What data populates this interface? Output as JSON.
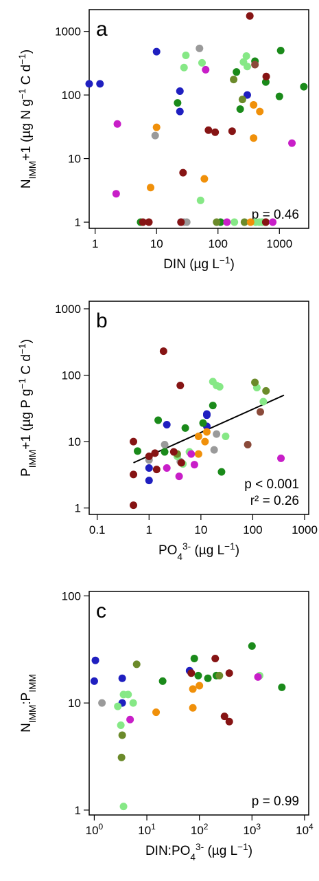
{
  "chart_data": [
    {
      "panel": "a",
      "type": "scatter",
      "xlabel": {
        "base": "DIN (µg L",
        "sup": "−1",
        "end": ")"
      },
      "ylabel": {
        "parts": [
          [
            "N",
            ""
          ],
          [
            "IMM",
            "sub"
          ],
          [
            "+1 (µg N g",
            ""
          ],
          [
            "−1",
            "sup"
          ],
          [
            " C d",
            ""
          ],
          [
            "−1",
            "sup"
          ],
          [
            ")",
            ""
          ]
        ]
      },
      "x_scale": "log",
      "y_scale": "log",
      "xlim": [
        0.8,
        3000
      ],
      "ylim": [
        0.8,
        2200
      ],
      "x_ticks": [
        {
          "v": 1,
          "label": "1"
        },
        {
          "v": 10,
          "label": "10"
        },
        {
          "v": 100,
          "label": "100"
        },
        {
          "v": 1000,
          "label": "1000"
        }
      ],
      "y_ticks": [
        {
          "v": 1,
          "label": "1"
        },
        {
          "v": 10,
          "label": "10"
        },
        {
          "v": 100,
          "label": "100"
        },
        {
          "v": 1000,
          "label": "1000"
        }
      ],
      "stats": [
        "p = 0.46"
      ],
      "points": [
        [
          0.8,
          150,
          "blue"
        ],
        [
          1.2,
          150,
          "blue"
        ],
        [
          10,
          480,
          "blue"
        ],
        [
          24,
          115,
          "blue"
        ],
        [
          24,
          55,
          "blue"
        ],
        [
          300,
          100,
          "blue"
        ],
        [
          25,
          1,
          "blue"
        ],
        [
          50,
          540,
          "gray"
        ],
        [
          9.5,
          23,
          "gray"
        ],
        [
          28,
          1,
          "gray"
        ],
        [
          31,
          1,
          "gray"
        ],
        [
          30,
          420,
          "lightgreen"
        ],
        [
          28,
          270,
          "lightgreen"
        ],
        [
          55,
          320,
          "lightgreen"
        ],
        [
          290,
          410,
          "lightgreen"
        ],
        [
          260,
          330,
          "lightgreen"
        ],
        [
          300,
          280,
          "lightgreen"
        ],
        [
          52,
          2.2,
          "lightgreen"
        ],
        [
          185,
          1,
          "lightgreen"
        ],
        [
          410,
          1,
          "lightgreen"
        ],
        [
          470,
          1,
          "lightgreen"
        ],
        [
          520,
          1,
          "lightgreen"
        ],
        [
          22,
          75,
          "green"
        ],
        [
          200,
          230,
          "green"
        ],
        [
          400,
          340,
          "green"
        ],
        [
          1050,
          500,
          "green"
        ],
        [
          600,
          160,
          "green"
        ],
        [
          1000,
          95,
          "green"
        ],
        [
          2500,
          135,
          "green"
        ],
        [
          230,
          60,
          "green"
        ],
        [
          5.5,
          1,
          "green"
        ],
        [
          110,
          1,
          "green"
        ],
        [
          180,
          175,
          "olive"
        ],
        [
          250,
          85,
          "olive"
        ],
        [
          95,
          1,
          "olive"
        ],
        [
          270,
          1,
          "olive"
        ],
        [
          600,
          1,
          "olive"
        ],
        [
          330,
          1750,
          "maroon"
        ],
        [
          610,
          195,
          "maroon"
        ],
        [
          70,
          28,
          "maroon"
        ],
        [
          90,
          26,
          "maroon"
        ],
        [
          170,
          27,
          "maroon"
        ],
        [
          27,
          6,
          "maroon"
        ],
        [
          6,
          1,
          "maroon"
        ],
        [
          7.5,
          1,
          "maroon"
        ],
        [
          25,
          1,
          "maroon"
        ],
        [
          600,
          1,
          "maroon"
        ],
        [
          400,
          300,
          "brown"
        ],
        [
          380,
          70,
          "orange"
        ],
        [
          480,
          55,
          "orange"
        ],
        [
          10,
          31,
          "orange"
        ],
        [
          8,
          3.5,
          "orange"
        ],
        [
          60,
          4.8,
          "orange"
        ],
        [
          380,
          21,
          "orange"
        ],
        [
          340,
          1,
          "orange"
        ],
        [
          63,
          250,
          "magenta"
        ],
        [
          2.3,
          35,
          "magenta"
        ],
        [
          2.2,
          2.8,
          "magenta"
        ],
        [
          1600,
          17.5,
          "magenta"
        ],
        [
          140,
          1,
          "magenta"
        ],
        [
          780,
          1,
          "magenta"
        ]
      ]
    },
    {
      "panel": "b",
      "type": "scatter",
      "xlabel": {
        "parts": [
          [
            "PO",
            ""
          ],
          [
            "4",
            "sub"
          ],
          [
            "3-",
            "sup"
          ],
          [
            " (µg L",
            ""
          ],
          [
            "−1",
            "sup"
          ],
          [
            ")",
            ""
          ]
        ]
      },
      "ylabel": {
        "parts": [
          [
            "P",
            ""
          ],
          [
            "IMM",
            "sub"
          ],
          [
            "+1 (µg P g",
            ""
          ],
          [
            "−1",
            "sup"
          ],
          [
            " C d",
            ""
          ],
          [
            "−1",
            "sup"
          ],
          [
            ")",
            ""
          ]
        ]
      },
      "x_scale": "log",
      "y_scale": "log",
      "xlim": [
        0.07,
        1200
      ],
      "ylim": [
        0.8,
        1300
      ],
      "x_ticks": [
        {
          "v": 0.1,
          "label": "0.1"
        },
        {
          "v": 1,
          "label": "1"
        },
        {
          "v": 10,
          "label": "10"
        },
        {
          "v": 100,
          "label": "100"
        },
        {
          "v": 1000,
          "label": "1000"
        }
      ],
      "y_ticks": [
        {
          "v": 1,
          "label": "1"
        },
        {
          "v": 10,
          "label": "10"
        },
        {
          "v": 100,
          "label": "100"
        },
        {
          "v": 1000,
          "label": "1000"
        }
      ],
      "stats": [
        "p < 0.001",
        "r² = 0.26"
      ],
      "fit_line": {
        "x": [
          0.5,
          400
        ],
        "y": [
          4.8,
          50
        ]
      },
      "points": [
        [
          2.2,
          18,
          "blue"
        ],
        [
          13,
          25,
          "blue"
        ],
        [
          1,
          4,
          "blue"
        ],
        [
          1,
          2.6,
          "blue"
        ],
        [
          13,
          26,
          "blue"
        ],
        [
          13,
          17,
          "blue"
        ],
        [
          2,
          9,
          "gray"
        ],
        [
          1,
          5.3,
          "gray"
        ],
        [
          4,
          5,
          "gray"
        ],
        [
          18,
          7.5,
          "gray"
        ],
        [
          20,
          13,
          "gray"
        ],
        [
          17,
          80,
          "lightgreen"
        ],
        [
          20,
          70,
          "lightgreen"
        ],
        [
          23,
          67,
          "lightgreen"
        ],
        [
          120,
          65,
          "lightgreen"
        ],
        [
          4.5,
          4.6,
          "lightgreen"
        ],
        [
          30,
          12,
          "lightgreen"
        ],
        [
          160,
          40,
          "lightgreen"
        ],
        [
          3.5,
          6,
          "lightgreen"
        ],
        [
          6,
          7,
          "lightgreen"
        ],
        [
          1.5,
          21,
          "green"
        ],
        [
          0.6,
          7.2,
          "green"
        ],
        [
          17,
          35,
          "green"
        ],
        [
          5,
          16,
          "green"
        ],
        [
          11,
          19,
          "green"
        ],
        [
          25,
          3.5,
          "green"
        ],
        [
          2,
          7,
          "green"
        ],
        [
          110,
          78,
          "olive"
        ],
        [
          180,
          58,
          "olive"
        ],
        [
          3.5,
          6.5,
          "olive"
        ],
        [
          1.9,
          230,
          "maroon"
        ],
        [
          4,
          70,
          "maroon"
        ],
        [
          0.5,
          10,
          "maroon"
        ],
        [
          1,
          6,
          "maroon"
        ],
        [
          1.3,
          6.7,
          "maroon"
        ],
        [
          3,
          7,
          "maroon"
        ],
        [
          4.2,
          4.8,
          "maroon"
        ],
        [
          0.5,
          1.1,
          "maroon"
        ],
        [
          1.4,
          3.8,
          "maroon"
        ],
        [
          0.5,
          3.2,
          "maroon"
        ],
        [
          140,
          28,
          "brown"
        ],
        [
          80,
          9,
          "brown"
        ],
        [
          9,
          12,
          "orange"
        ],
        [
          13,
          14,
          "orange"
        ],
        [
          12,
          10,
          "orange"
        ],
        [
          9,
          6.5,
          "orange"
        ],
        [
          2.2,
          4,
          "magenta"
        ],
        [
          3.8,
          3,
          "magenta"
        ],
        [
          6.5,
          6.5,
          "magenta"
        ],
        [
          7.5,
          4.5,
          "magenta"
        ],
        [
          350,
          5.6,
          "magenta"
        ]
      ]
    },
    {
      "panel": "c",
      "type": "scatter",
      "xlabel": {
        "parts": [
          [
            "DIN:PO",
            ""
          ],
          [
            "4",
            "sub"
          ],
          [
            "3-",
            "sup"
          ],
          [
            " (µg L",
            ""
          ],
          [
            "−1",
            "sup"
          ],
          [
            ")",
            ""
          ]
        ]
      },
      "ylabel": {
        "parts": [
          [
            "N",
            ""
          ],
          [
            "IMM",
            "sub"
          ],
          [
            ":P",
            ""
          ],
          [
            "IMM",
            "sub"
          ]
        ]
      },
      "x_scale": "log",
      "y_scale": "log",
      "xlim": [
        0.8,
        12000
      ],
      "ylim": [
        0.9,
        110
      ],
      "x_ticks": [
        {
          "v": 1,
          "base": "10",
          "exp": "0"
        },
        {
          "v": 10,
          "base": "10",
          "exp": "1"
        },
        {
          "v": 100,
          "base": "10",
          "exp": "2"
        },
        {
          "v": 1000,
          "base": "10",
          "exp": "3"
        },
        {
          "v": 10000,
          "base": "10",
          "exp": "4"
        }
      ],
      "y_ticks": [
        {
          "v": 1,
          "label": "1"
        },
        {
          "v": 10,
          "label": "10"
        },
        {
          "v": 100,
          "label": "100"
        }
      ],
      "stats": [
        "p = 0.99"
      ],
      "points": [
        [
          1.05,
          25,
          "blue"
        ],
        [
          1,
          16,
          "blue"
        ],
        [
          3.4,
          17,
          "blue"
        ],
        [
          3.4,
          10,
          "blue"
        ],
        [
          65,
          20,
          "blue"
        ],
        [
          1.4,
          10,
          "gray"
        ],
        [
          3.6,
          12,
          "lightgreen"
        ],
        [
          4.4,
          12,
          "lightgreen"
        ],
        [
          3.2,
          6.2,
          "lightgreen"
        ],
        [
          2.8,
          9.3,
          "lightgreen"
        ],
        [
          5.5,
          10,
          "lightgreen"
        ],
        [
          3.6,
          1.08,
          "lightgreen"
        ],
        [
          1400,
          18,
          "lightgreen"
        ],
        [
          20,
          16,
          "green"
        ],
        [
          80,
          26,
          "green"
        ],
        [
          145,
          17,
          "green"
        ],
        [
          210,
          18,
          "green"
        ],
        [
          1000,
          34,
          "green"
        ],
        [
          3700,
          14,
          "green"
        ],
        [
          95,
          18,
          "green"
        ],
        [
          3.3,
          3.1,
          "olive"
        ],
        [
          3.4,
          5,
          "olive"
        ],
        [
          6.4,
          23,
          "olive"
        ],
        [
          240,
          18,
          "olive"
        ],
        [
          70,
          19,
          "maroon"
        ],
        [
          200,
          26,
          "maroon"
        ],
        [
          370,
          19,
          "maroon"
        ],
        [
          300,
          7.5,
          "maroon"
        ],
        [
          370,
          6.7,
          "maroon"
        ],
        [
          15,
          8.2,
          "orange"
        ],
        [
          75,
          13.5,
          "orange"
        ],
        [
          100,
          14.5,
          "orange"
        ],
        [
          75,
          9,
          "orange"
        ],
        [
          4.8,
          7,
          "magenta"
        ],
        [
          1300,
          17.5,
          "magenta"
        ]
      ]
    }
  ],
  "colors": {
    "blue": "#1f1fc0",
    "gray": "#9a9a9a",
    "lightgreen": "#86e886",
    "green": "#1a8a1a",
    "olive": "#6b8a2a",
    "maroon": "#861414",
    "brown": "#8a4a3a",
    "orange": "#f0900a",
    "magenta": "#c81ec8"
  }
}
